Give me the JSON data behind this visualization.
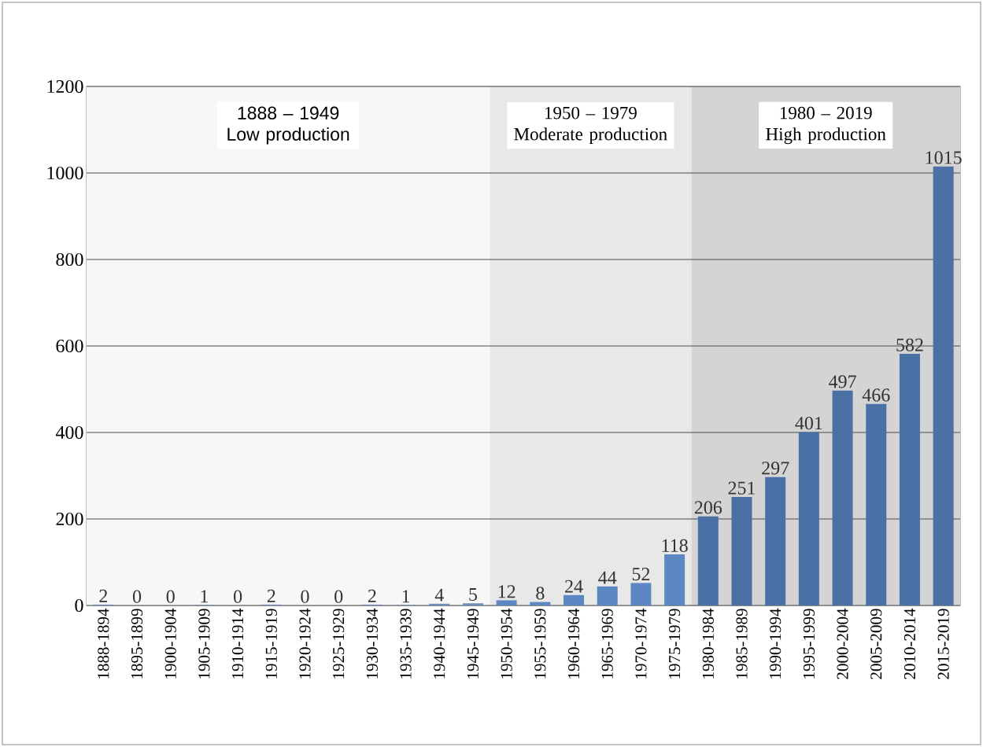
{
  "chart_data": {
    "type": "bar",
    "categories": [
      "1888-1894",
      "1895-1899",
      "1900-1904",
      "1905-1909",
      "1910-1914",
      "1915-1919",
      "1920-1924",
      "1925-1929",
      "1930-1934",
      "1935-1939",
      "1940-1944",
      "1945-1949",
      "1950-1954",
      "1955-1959",
      "1960-1964",
      "1965-1969",
      "1970-1974",
      "1975-1979",
      "1980-1984",
      "1985-1989",
      "1990-1994",
      "1995-1999",
      "2000-2004",
      "2005-2009",
      "2010-2014",
      "2015-2019"
    ],
    "values": [
      2,
      0,
      0,
      1,
      0,
      2,
      0,
      0,
      2,
      1,
      4,
      5,
      12,
      8,
      24,
      44,
      52,
      118,
      206,
      251,
      297,
      401,
      497,
      466,
      582,
      1015
    ],
    "colors": [
      "#6d8fbf",
      "#6d8fbf",
      "#6d8fbf",
      "#6d8fbf",
      "#6d8fbf",
      "#6d8fbf",
      "#6d8fbf",
      "#6d8fbf",
      "#6d8fbf",
      "#6d8fbf",
      "#6d8fbf",
      "#6d8fbf",
      "#5b88c2",
      "#5b88c2",
      "#5b88c2",
      "#5b88c2",
      "#5b88c2",
      "#5b88c2",
      "#4a70a6",
      "#4a70a6",
      "#4a70a6",
      "#4a70a6",
      "#4a70a6",
      "#4a70a6",
      "#4a70a6",
      "#4a70a6"
    ],
    "data_labels": true,
    "ylim": [
      0,
      1200
    ],
    "yticks": [
      0,
      200,
      400,
      600,
      800,
      1000,
      1200
    ],
    "grid": "y",
    "bands": [
      {
        "axis": "x",
        "from": "1888-1894",
        "to": "1945-1949",
        "label": "1888 – 1949 Low production",
        "color": "#f7f7f7"
      },
      {
        "axis": "x",
        "from": "1950-1954",
        "to": "1975-1979",
        "label": "1950 – 1979 Moderate production",
        "color": "#e8e8e8"
      },
      {
        "axis": "x",
        "from": "1980-1984",
        "to": "2015-2019",
        "label": "1980 – 2019 High production",
        "color": "#d4d4d4"
      }
    ]
  }
}
